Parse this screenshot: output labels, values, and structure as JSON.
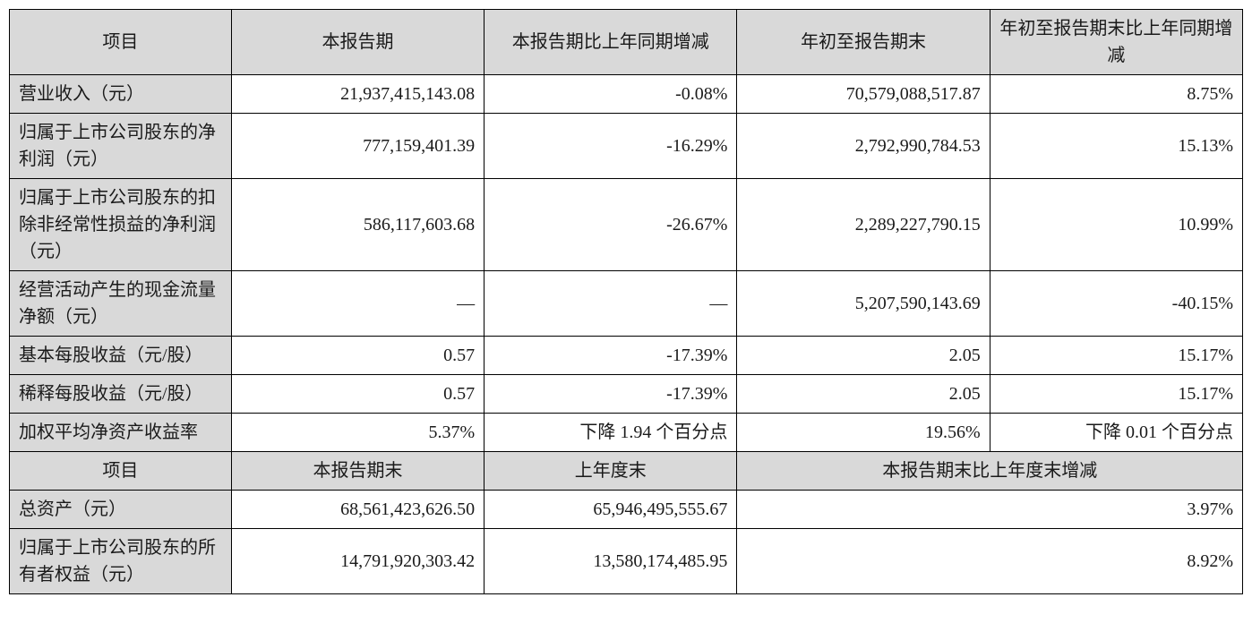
{
  "table1": {
    "headers": {
      "item": "项目",
      "current_period": "本报告期",
      "current_change": "本报告期比上年同期增减",
      "ytd": "年初至报告期末",
      "ytd_change": "年初至报告期末比上年同期增减"
    },
    "rows": [
      {
        "label": "营业收入（元）",
        "v1": "21,937,415,143.08",
        "v2": "-0.08%",
        "v3": "70,579,088,517.87",
        "v4": "8.75%"
      },
      {
        "label": "归属于上市公司股东的净利润（元）",
        "v1": "777,159,401.39",
        "v2": "-16.29%",
        "v3": "2,792,990,784.53",
        "v4": "15.13%"
      },
      {
        "label": "归属于上市公司股东的扣除非经常性损益的净利润（元）",
        "v1": "586,117,603.68",
        "v2": "-26.67%",
        "v3": "2,289,227,790.15",
        "v4": "10.99%"
      },
      {
        "label": "经营活动产生的现金流量净额（元）",
        "v1": "—",
        "v2": "—",
        "v3": "5,207,590,143.69",
        "v4": "-40.15%"
      },
      {
        "label": "基本每股收益（元/股）",
        "v1": "0.57",
        "v2": "-17.39%",
        "v3": "2.05",
        "v4": "15.17%"
      },
      {
        "label": "稀释每股收益（元/股）",
        "v1": "0.57",
        "v2": "-17.39%",
        "v3": "2.05",
        "v4": "15.17%"
      },
      {
        "label": "加权平均净资产收益率",
        "v1": "5.37%",
        "v2": "下降 1.94 个百分点",
        "v3": "19.56%",
        "v4": "下降 0.01 个百分点"
      }
    ]
  },
  "table2": {
    "headers": {
      "item": "项目",
      "period_end": "本报告期末",
      "last_year_end": "上年度末",
      "change": "本报告期末比上年度末增减"
    },
    "rows": [
      {
        "label": "总资产（元）",
        "v1": "68,561,423,626.50",
        "v2": "65,946,495,555.67",
        "v3": "3.97%"
      },
      {
        "label": "归属于上市公司股东的所有者权益（元）",
        "v1": "14,791,920,303.42",
        "v2": "13,580,174,485.95",
        "v3": "8.92%"
      }
    ]
  },
  "styling": {
    "header_bg": "#d9d9d9",
    "border_color": "#000000",
    "font_size": 20,
    "text_color": "#1a1a1a"
  }
}
